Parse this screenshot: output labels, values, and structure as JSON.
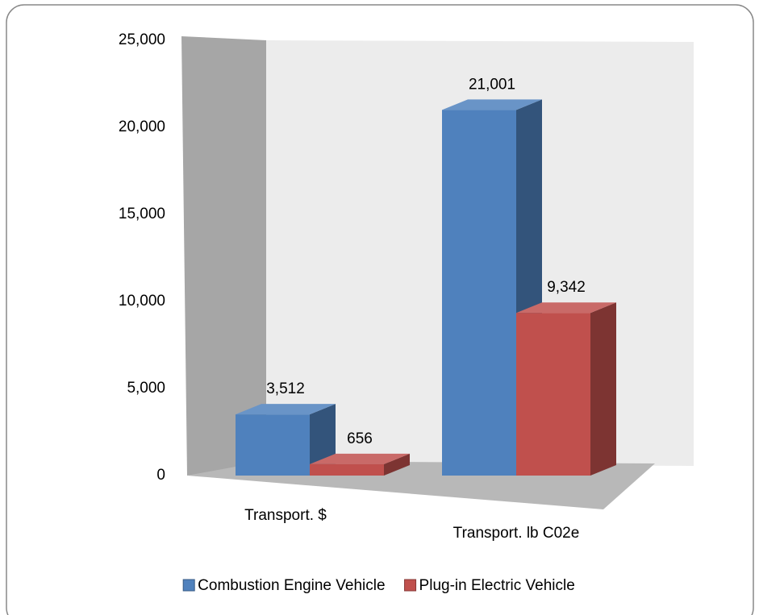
{
  "chart_data": {
    "type": "bar3d",
    "categories": [
      "Transport. $",
      "Transport. lb C02e"
    ],
    "series": [
      {
        "name": "Combustion Engine Vehicle",
        "color": "#4f81bd",
        "values": [
          3512,
          21001
        ],
        "value_labels": [
          "3,512",
          "21,001"
        ]
      },
      {
        "name": "Plug-in Electric Vehicle",
        "color": "#c0504d",
        "values": [
          656,
          9342
        ],
        "value_labels": [
          "656",
          "9,342"
        ]
      }
    ],
    "ylim": [
      0,
      25000
    ],
    "yticks": [
      0,
      {
        "value": 5000,
        "label": "5,000"
      },
      {
        "value": 10000,
        "label": "10,000"
      },
      {
        "value": 15000,
        "label": "15,000"
      },
      {
        "value": 20000,
        "label": "20,000"
      },
      {
        "value": 25000,
        "label": "25,000"
      }
    ],
    "grid": false,
    "legend": "bottom"
  }
}
